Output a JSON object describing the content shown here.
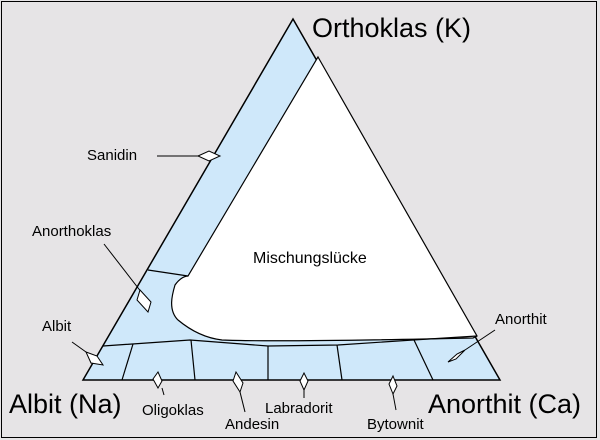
{
  "colors": {
    "background": "#e6e4e6",
    "solid_solution": "#cfe8fa",
    "gap": "#ffffff",
    "lines": "#000000"
  },
  "endmembers": {
    "top": "Orthoklas (K)",
    "left": "Albit (Na)",
    "right": "Anorthit (Ca)"
  },
  "regions": {
    "gap": "Mischungslücke"
  },
  "minerals": {
    "sanidin": "Sanidin",
    "anorthoklas": "Anorthoklas",
    "albit": "Albit",
    "oligoklas": "Oligoklas",
    "andesin": "Andesin",
    "labradorit": "Labradorit",
    "bytownit": "Bytownit",
    "anorthit": "Anorthit"
  }
}
